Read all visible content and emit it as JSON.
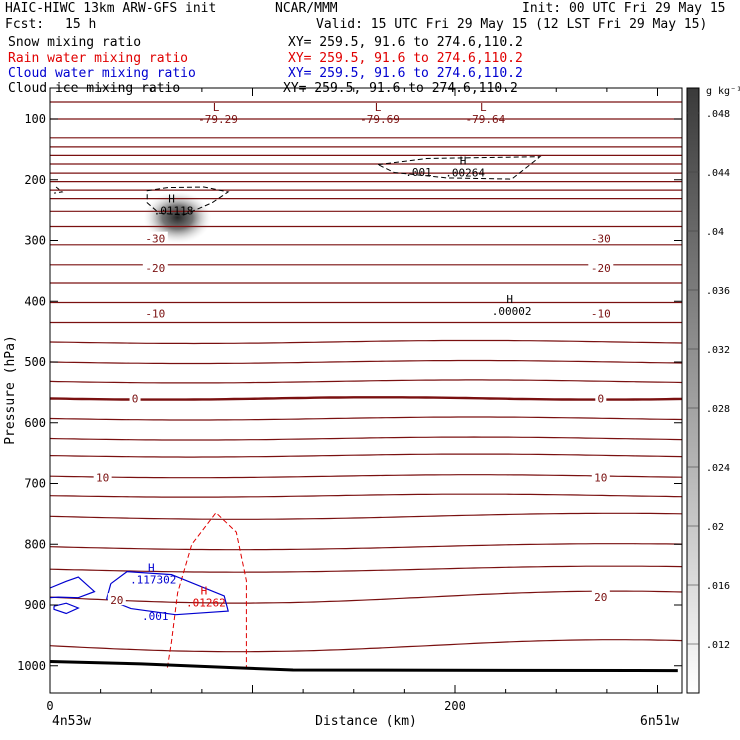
{
  "header": {
    "title": "HAIC-HIWC 13km ARW-GFS init",
    "source": "NCAR/MMM",
    "init": "Init: 00 UTC Fri 29 May 15",
    "fcst_label": "Fcst:",
    "fcst_value": "15 h",
    "valid": "Valid: 15 UTC Fri 29 May 15 (12 LST Fri 29 May 15)"
  },
  "fields": [
    {
      "name": "Snow mixing ratio",
      "xy": "XY= 259.5, 91.6 to 274.6,110.2",
      "color": "#000000"
    },
    {
      "name": "Rain water mixing ratio",
      "xy": "XY= 259.5, 91.6 to 274.6,110.2",
      "color": "#e00000"
    },
    {
      "name": "Cloud water mixing ratio",
      "xy": "XY= 259.5, 91.6 to 274.6,110.2",
      "color": "#0000d0"
    },
    {
      "name": "Cloud ice mixing ratio",
      "xy": "XY= 259.5, 91.6 to 274.6,110.2",
      "color": "#000000"
    }
  ],
  "chart_data": {
    "type": "heatmap",
    "xlabel": "Distance (km)",
    "ylabel": "Pressure (hPa)",
    "xlim": [
      0,
      310
    ],
    "ylim": [
      1050,
      50
    ],
    "x_ticks": [
      0,
      200
    ],
    "y_ticks": [
      100,
      200,
      300,
      400,
      500,
      600,
      700,
      800,
      900,
      1000
    ],
    "x_end_labels": {
      "left": "4n53w",
      "right": "6n51w"
    },
    "colorbar": {
      "unit": "g kg⁻¹",
      "ticks": [
        ".012",
        ".016",
        ".02",
        ".024",
        ".028",
        ".032",
        ".036",
        ".04",
        ".044",
        ".048"
      ]
    },
    "temperature_contours": {
      "color": "#7a1010",
      "levels_hPa": [
        72,
        100,
        131,
        146,
        160,
        174,
        189,
        203,
        217,
        231,
        252,
        277,
        307,
        340,
        370,
        402,
        435,
        467,
        500,
        532,
        593,
        626,
        654,
        688,
        720,
        754,
        804,
        841,
        887,
        967
      ],
      "zero_isotherm_hPa": 560,
      "labels": [
        {
          "text": "-30",
          "x": 52,
          "p": 297
        },
        {
          "text": "-30",
          "x": 272,
          "p": 297
        },
        {
          "text": "-20",
          "x": 52,
          "p": 345
        },
        {
          "text": "-20",
          "x": 272,
          "p": 345
        },
        {
          "text": "-10",
          "x": 52,
          "p": 420
        },
        {
          "text": "-10",
          "x": 272,
          "p": 420
        },
        {
          "text": "0",
          "x": 42,
          "p": 560
        },
        {
          "text": "0",
          "x": 272,
          "p": 560
        },
        {
          "text": "10",
          "x": 26,
          "p": 690
        },
        {
          "text": "10",
          "x": 272,
          "p": 690
        },
        {
          "text": "20",
          "x": 33,
          "p": 892
        },
        {
          "text": "20",
          "x": 272,
          "p": 887
        }
      ]
    },
    "extrema": [
      {
        "kind": "L",
        "value": "-79.29",
        "x": 82,
        "p": 97,
        "color": "#7a1010"
      },
      {
        "kind": "L",
        "value": "-79.69",
        "x": 162,
        "p": 97,
        "color": "#7a1010"
      },
      {
        "kind": "L",
        "value": "-79.64",
        "x": 214,
        "p": 97,
        "color": "#7a1010"
      },
      {
        "kind": "H",
        "value": ".01118",
        "x": 60,
        "p": 247,
        "color": "#000000"
      },
      {
        "kind": "H",
        "value": ".00264",
        "x": 204,
        "p": 185,
        "color": "#000000"
      },
      {
        "kind": "H",
        "value": ".00002",
        "x": 227,
        "p": 413,
        "color": "#000000"
      },
      {
        "kind": "H",
        "value": ".117302",
        "x": 50,
        "p": 855,
        "color": "#0000d0"
      },
      {
        "kind": "H",
        "value": ".01262",
        "x": 76,
        "p": 893,
        "color": "#e00000"
      }
    ],
    "contour_labels": [
      {
        "text": ".001",
        "x": 182,
        "p": 187,
        "color": "#000000"
      },
      {
        "text": ".001",
        "x": 52,
        "p": 918,
        "color": "#0000d0"
      }
    ],
    "snow_max_gkg": 0.05
  }
}
